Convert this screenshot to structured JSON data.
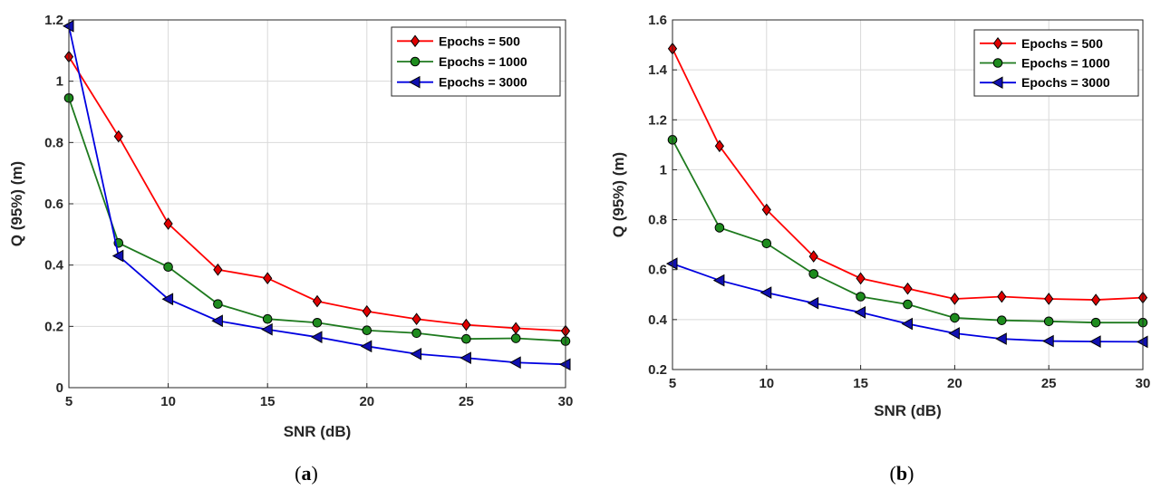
{
  "chart_data": [
    {
      "type": "line",
      "caption_letter": "a",
      "xlabel": "SNR (dB)",
      "ylabel": "Q (95%) (m)",
      "xlim": [
        5,
        30
      ],
      "ylim": [
        0,
        1.2
      ],
      "xticks": [
        5,
        10,
        15,
        20,
        25,
        30
      ],
      "xtick_labels": [
        "5",
        "10",
        "15",
        "20",
        "25",
        "30"
      ],
      "yticks": [
        0,
        0.2,
        0.4,
        0.6,
        0.8,
        1,
        1.2
      ],
      "ytick_labels": [
        "0",
        "0.2",
        "0.4",
        "0.6",
        "0.8",
        "1",
        "1.2"
      ],
      "grid": true,
      "legend_position": "top-right",
      "x": [
        5,
        7.5,
        10,
        12.5,
        15,
        17.5,
        20,
        22.5,
        25,
        27.5,
        30
      ],
      "series": [
        {
          "name": "Epochs = 500",
          "color": "#ff0000",
          "marker_fill": "#e00000",
          "marker": "diamond",
          "values": [
            1.08,
            0.82,
            0.535,
            0.385,
            0.357,
            0.282,
            0.249,
            0.224,
            0.205,
            0.194,
            0.185
          ]
        },
        {
          "name": "Epochs = 1000",
          "color": "#1e7a1e",
          "marker_fill": "#1e8c1e",
          "marker": "circle",
          "values": [
            0.945,
            0.472,
            0.394,
            0.273,
            0.224,
            0.212,
            0.187,
            0.178,
            0.159,
            0.161,
            0.152
          ]
        },
        {
          "name": "Epochs = 3000",
          "color": "#0000e0",
          "marker_fill": "#1010b0",
          "marker": "triangle-left",
          "values": [
            1.18,
            0.43,
            0.289,
            0.218,
            0.19,
            0.165,
            0.135,
            0.11,
            0.097,
            0.082,
            0.076
          ]
        }
      ]
    },
    {
      "type": "line",
      "caption_letter": "b",
      "xlabel": "SNR (dB)",
      "ylabel": "Q (95%) (m)",
      "xlim": [
        5,
        30
      ],
      "ylim": [
        0.2,
        1.6
      ],
      "xticks": [
        5,
        10,
        15,
        20,
        25,
        30
      ],
      "xtick_labels": [
        "5",
        "10",
        "15",
        "20",
        "25",
        "30"
      ],
      "yticks": [
        0.2,
        0.4,
        0.6,
        0.8,
        1,
        1.2,
        1.4,
        1.6
      ],
      "ytick_labels": [
        "0.2",
        "0.4",
        "0.6",
        "0.8",
        "1",
        "1.2",
        "1.4",
        "1.6"
      ],
      "grid": true,
      "legend_position": "top-right",
      "x": [
        5,
        7.5,
        10,
        12.5,
        15,
        17.5,
        20,
        22.5,
        25,
        27.5,
        30
      ],
      "series": [
        {
          "name": "Epochs = 500",
          "color": "#ff0000",
          "marker_fill": "#e00000",
          "marker": "diamond",
          "values": [
            1.485,
            1.095,
            0.84,
            0.653,
            0.565,
            0.524,
            0.483,
            0.492,
            0.483,
            0.479,
            0.488
          ]
        },
        {
          "name": "Epochs = 1000",
          "color": "#1e7a1e",
          "marker_fill": "#1e8c1e",
          "marker": "circle",
          "values": [
            1.12,
            0.768,
            0.705,
            0.583,
            0.492,
            0.461,
            0.407,
            0.397,
            0.393,
            0.388,
            0.388
          ]
        },
        {
          "name": "Epochs = 3000",
          "color": "#0000e0",
          "marker_fill": "#1010b0",
          "marker": "triangle-left",
          "values": [
            0.624,
            0.557,
            0.508,
            0.466,
            0.429,
            0.383,
            0.345,
            0.323,
            0.314,
            0.312,
            0.311
          ]
        }
      ]
    }
  ]
}
